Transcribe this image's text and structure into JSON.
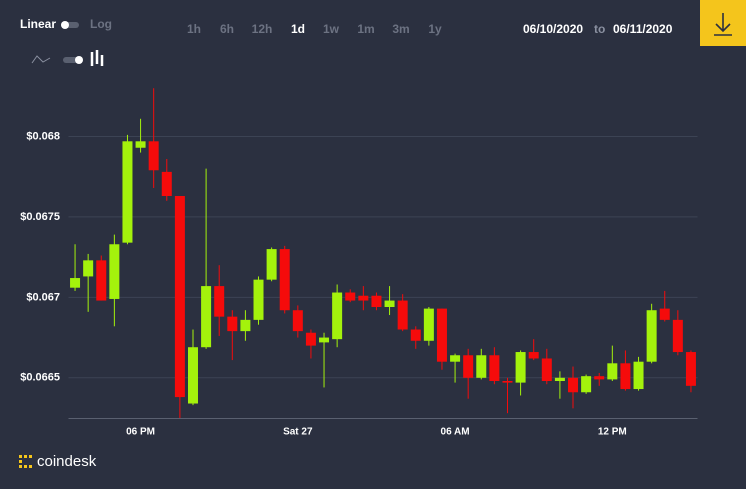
{
  "controls": {
    "scale_options": [
      "Linear",
      "Log"
    ],
    "intervals": [
      "1h",
      "6h",
      "12h",
      "1d",
      "1w",
      "1m",
      "3m",
      "1y"
    ],
    "active_interval": "1d",
    "date_from": "06/10/2020",
    "date_to_word": "to",
    "date_to": "06/11/2020",
    "brand": "coindesk"
  },
  "chart_data": {
    "type": "candlestick",
    "categories": [
      null,
      null,
      null,
      null,
      null,
      "06 PM",
      null,
      null,
      null,
      null,
      null,
      null,
      null,
      null,
      null,
      null,
      null,
      "Sat 27",
      null,
      null,
      null,
      null,
      null,
      null,
      null,
      null,
      null,
      null,
      null,
      "06 AM",
      null,
      null,
      null,
      null,
      null,
      null,
      null,
      null,
      null,
      null,
      null,
      "12 PM",
      null,
      null,
      null,
      null,
      null,
      null
    ],
    "open": [
      0.06706,
      0.06713,
      0.06723,
      0.06699,
      0.06734,
      0.06793,
      0.06797,
      0.06778,
      0.06763,
      0.06634,
      0.06669,
      0.06707,
      0.06688,
      0.06679,
      0.06686,
      0.06711,
      0.0673,
      0.06692,
      0.06678,
      0.06672,
      0.06674,
      0.06703,
      0.06701,
      0.06701,
      0.06694,
      0.06698,
      0.0668,
      0.06673,
      0.06693,
      0.0666,
      0.06664,
      0.0665,
      0.06664,
      0.06648,
      0.06647,
      0.06666,
      0.06662,
      0.06648,
      0.0665,
      0.06641,
      0.06651,
      0.06649,
      0.06659,
      0.06643,
      0.0666,
      0.06693,
      0.06686,
      0.06666
    ],
    "high": [
      0.06733,
      0.06727,
      0.06726,
      0.06739,
      0.06801,
      0.06811,
      0.0683,
      0.06786,
      0.06763,
      0.0668,
      0.0678,
      0.0672,
      0.06692,
      0.06692,
      0.06713,
      0.06731,
      0.06732,
      0.06695,
      0.0668,
      0.06678,
      0.06708,
      0.06705,
      0.06707,
      0.06703,
      0.06707,
      0.06702,
      0.06682,
      0.06694,
      0.06693,
      0.06665,
      0.06668,
      0.06668,
      0.06669,
      0.0665,
      0.06667,
      0.06674,
      0.06668,
      0.06654,
      0.06657,
      0.06652,
      0.06653,
      0.0667,
      0.06667,
      0.06663,
      0.06696,
      0.06704,
      0.06692,
      0.06667
    ],
    "low": [
      0.06704,
      0.06691,
      0.06698,
      0.06682,
      0.06733,
      0.0679,
      0.06768,
      0.0676,
      0.06625,
      0.06633,
      0.06668,
      0.06676,
      0.06661,
      0.06673,
      0.06683,
      0.0671,
      0.0669,
      0.06675,
      0.06662,
      0.06644,
      0.06669,
      0.06697,
      0.06692,
      0.06692,
      0.06689,
      0.06679,
      0.06668,
      0.0667,
      0.06655,
      0.06647,
      0.06637,
      0.06649,
      0.06646,
      0.06628,
      0.06639,
      0.06661,
      0.06646,
      0.06637,
      0.06631,
      0.0664,
      0.06645,
      0.06648,
      0.06642,
      0.06642,
      0.06659,
      0.06685,
      0.06664,
      0.06641
    ],
    "close": [
      0.06712,
      0.06723,
      0.06698,
      0.06733,
      0.06797,
      0.06797,
      0.06779,
      0.06763,
      0.06638,
      0.06669,
      0.06707,
      0.06688,
      0.06679,
      0.06686,
      0.06711,
      0.0673,
      0.06692,
      0.06679,
      0.0667,
      0.06675,
      0.06703,
      0.06698,
      0.06698,
      0.06694,
      0.06698,
      0.0668,
      0.06673,
      0.06693,
      0.0666,
      0.06664,
      0.0665,
      0.06664,
      0.06648,
      0.06647,
      0.06666,
      0.06662,
      0.06648,
      0.0665,
      0.06641,
      0.06651,
      0.06649,
      0.06659,
      0.06643,
      0.0666,
      0.06692,
      0.06686,
      0.06666,
      0.06645
    ],
    "up_color": "#a4f20c",
    "down_color": "#f50b0b",
    "ylim": [
      0.06625,
      0.06832
    ],
    "yticks": [
      {
        "value": 0.0665,
        "label": "$0.0665"
      },
      {
        "value": 0.067,
        "label": "$0.067"
      },
      {
        "value": 0.0675,
        "label": "$0.0675"
      },
      {
        "value": 0.068,
        "label": "$0.068"
      }
    ],
    "grid": true
  }
}
